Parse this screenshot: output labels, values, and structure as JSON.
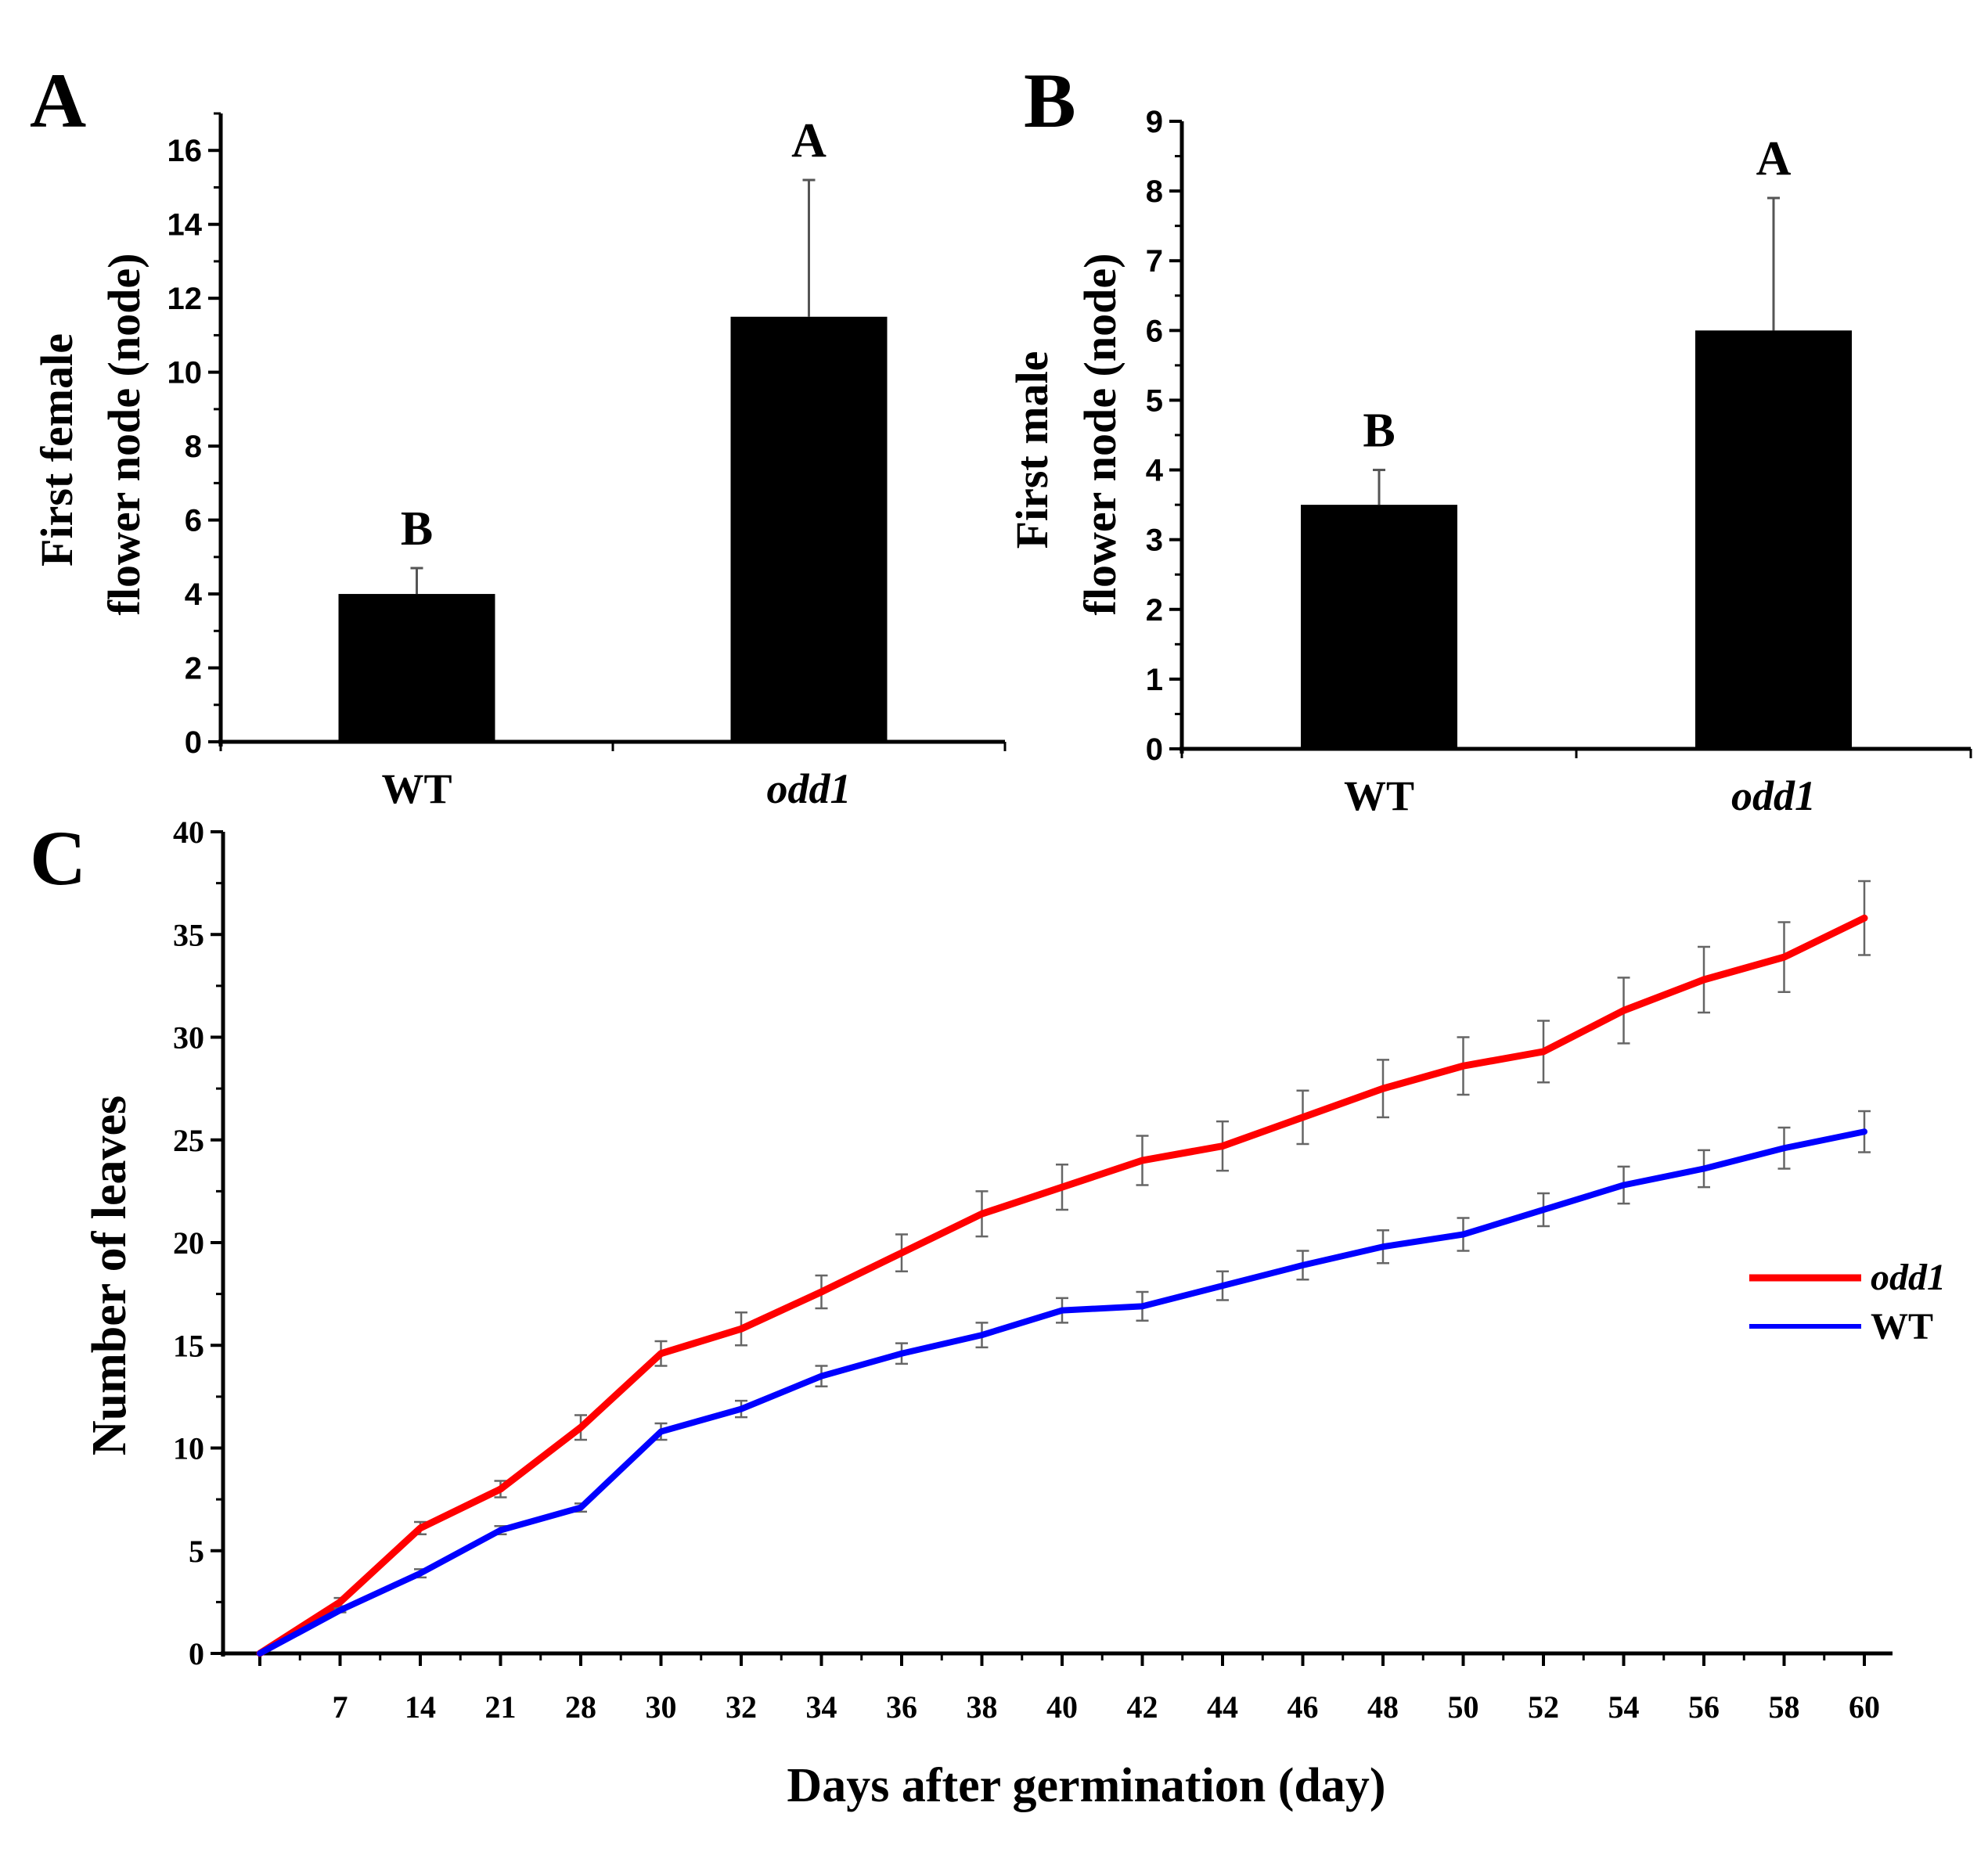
{
  "chart_data": [
    {
      "type": "bar",
      "panel": "A",
      "categories": [
        "WT",
        "odd1"
      ],
      "values": [
        4.0,
        11.5
      ],
      "errors": [
        0.7,
        3.7
      ],
      "significance": [
        "B",
        "A"
      ],
      "ylabel_line1": "First female",
      "ylabel_line2": "flower node (node)",
      "ylim": [
        0,
        17
      ],
      "yticks": [
        0,
        2,
        4,
        6,
        8,
        10,
        12,
        14,
        16
      ],
      "color": "#000000"
    },
    {
      "type": "bar",
      "panel": "B",
      "categories": [
        "WT",
        "odd1"
      ],
      "values": [
        3.5,
        6.0
      ],
      "errors": [
        0.5,
        1.9
      ],
      "significance": [
        "B",
        "A"
      ],
      "ylabel_line1": "First male",
      "ylabel_line2": "flower node (node)",
      "ylim": [
        0,
        9
      ],
      "yticks": [
        0,
        1,
        2,
        3,
        4,
        5,
        6,
        7,
        8,
        9
      ],
      "color": "#000000"
    },
    {
      "type": "line",
      "panel": "C",
      "xlabel": "Days after germination (day)",
      "ylabel": "Number of leaves",
      "ylim": [
        0,
        40
      ],
      "yticks": [
        0,
        5,
        10,
        15,
        20,
        25,
        30,
        35,
        40
      ],
      "x": [
        "",
        "7",
        "14",
        "21",
        "28",
        "30",
        "32",
        "34",
        "36",
        "38",
        "40",
        "42",
        "44",
        "46",
        "48",
        "50",
        "52",
        "54",
        "56",
        "58",
        "60"
      ],
      "legend_position": "right",
      "series": [
        {
          "name": "odd1",
          "color": "#ff0000",
          "values": [
            0,
            2.5,
            6.1,
            8.0,
            11.0,
            14.6,
            15.8,
            17.6,
            19.5,
            21.4,
            22.7,
            24.0,
            24.7,
            26.1,
            27.5,
            28.6,
            29.3,
            31.3,
            32.8,
            33.9,
            35.8
          ],
          "errors": [
            0,
            0.2,
            0.3,
            0.4,
            0.6,
            0.6,
            0.8,
            0.8,
            0.9,
            1.1,
            1.1,
            1.2,
            1.2,
            1.3,
            1.4,
            1.4,
            1.5,
            1.6,
            1.6,
            1.7,
            1.8
          ]
        },
        {
          "name": "WT",
          "color": "#0000ff",
          "values": [
            0,
            2.1,
            3.9,
            6.0,
            7.1,
            10.8,
            11.9,
            13.5,
            14.6,
            15.5,
            16.7,
            16.9,
            17.9,
            18.9,
            19.8,
            20.4,
            21.6,
            22.8,
            23.6,
            24.6,
            25.4
          ],
          "errors": [
            0,
            0.1,
            0.2,
            0.2,
            0.2,
            0.4,
            0.4,
            0.5,
            0.5,
            0.6,
            0.6,
            0.7,
            0.7,
            0.7,
            0.8,
            0.8,
            0.8,
            0.9,
            0.9,
            1.0,
            1.0
          ]
        }
      ]
    }
  ]
}
